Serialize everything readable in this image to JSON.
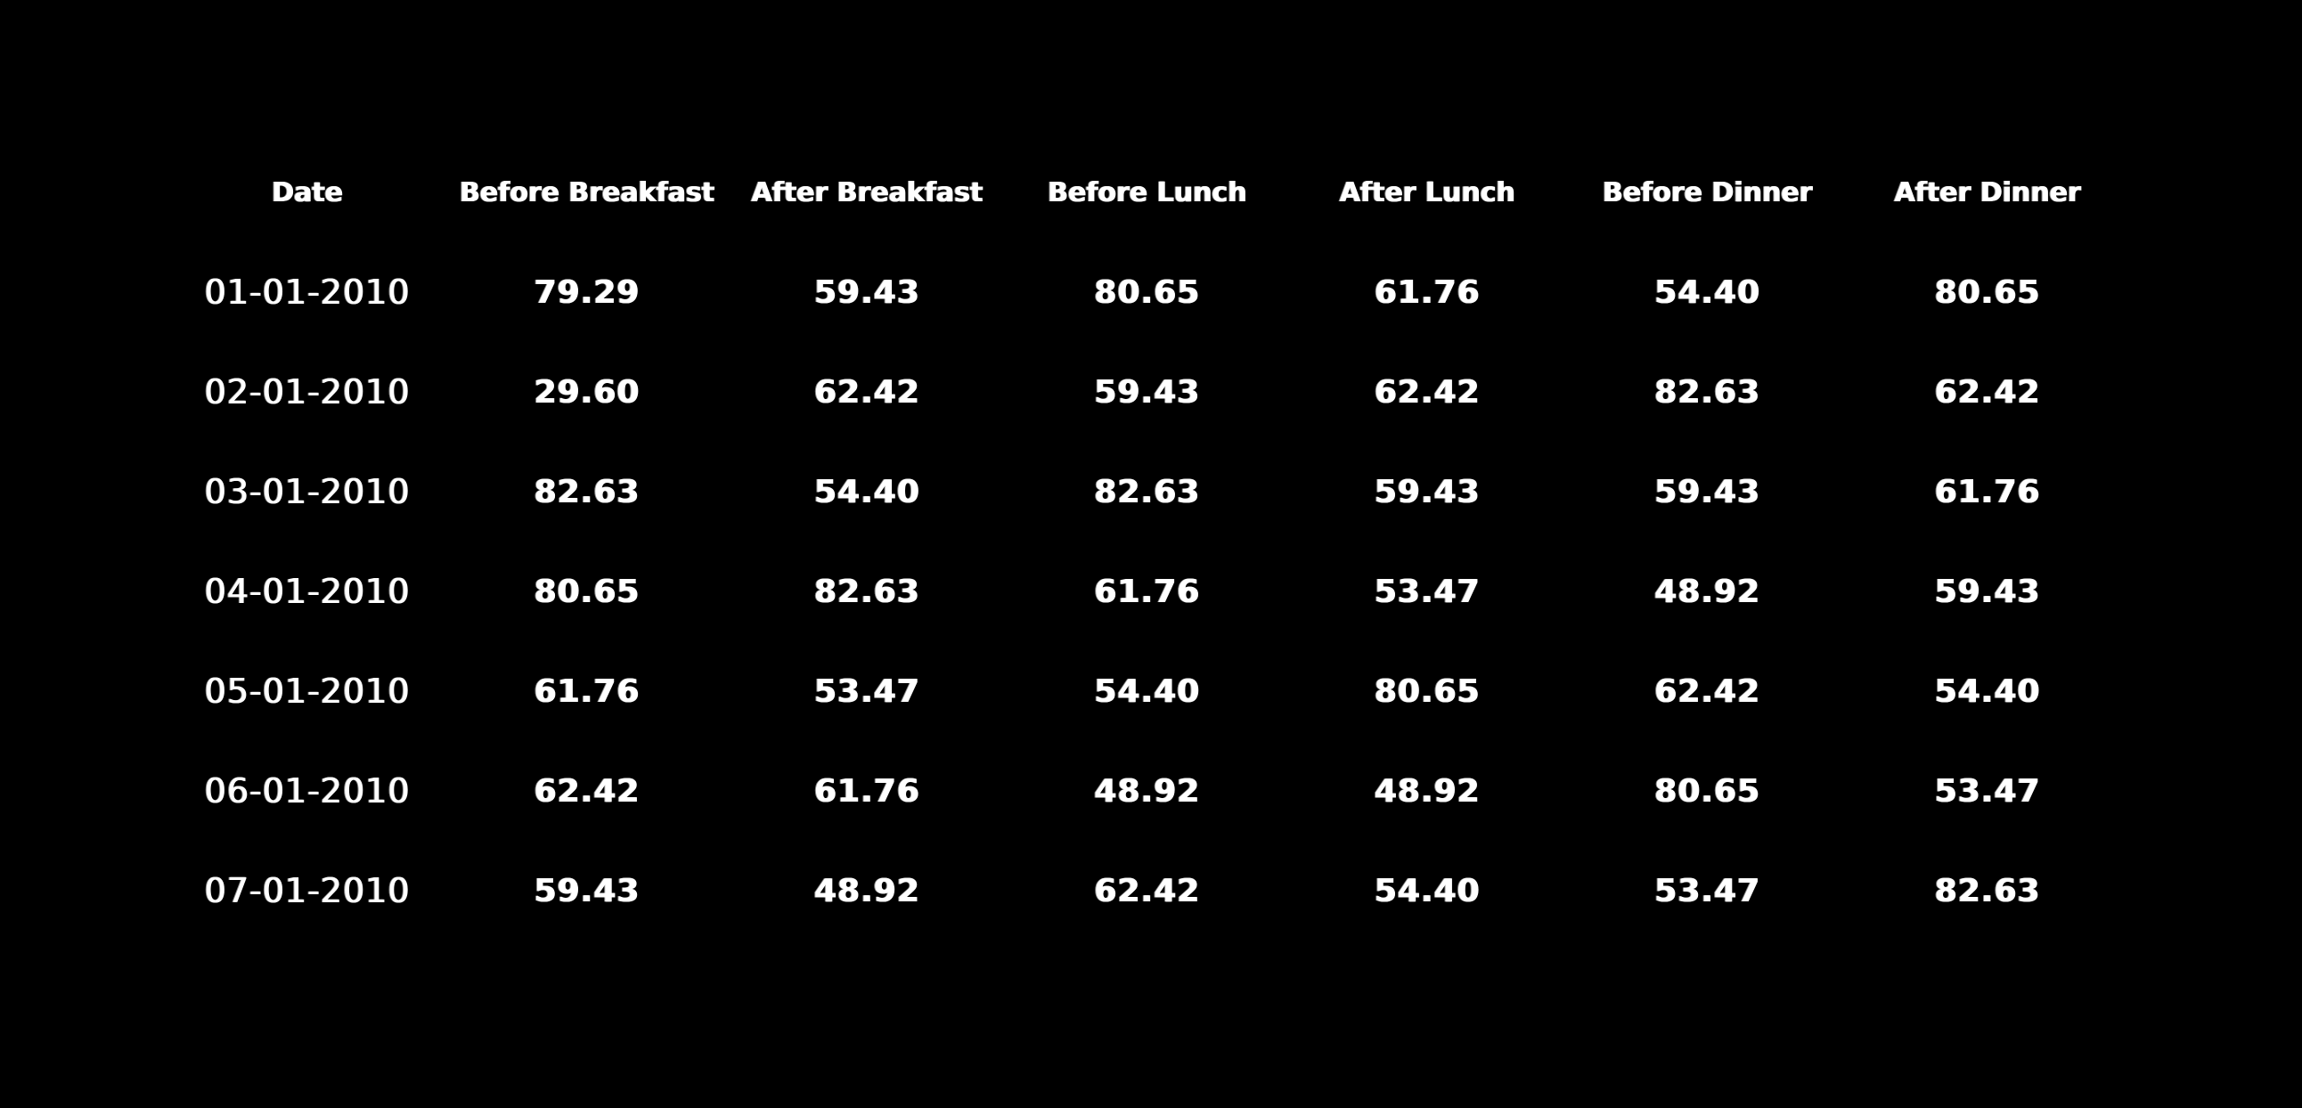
{
  "table": {
    "headers": [
      "Date",
      "Before Breakfast",
      "After Breakfast",
      "Before Lunch",
      "After Lunch",
      "Before Dinner",
      "After Dinner"
    ],
    "rows": [
      [
        "01-01-2010",
        "79.29",
        "59.43",
        "80.65",
        "61.76",
        "54.40",
        "80.65"
      ],
      [
        "02-01-2010",
        "29.60",
        "62.42",
        "59.43",
        "62.42",
        "82.63",
        "62.42"
      ],
      [
        "03-01-2010",
        "82.63",
        "54.40",
        "82.63",
        "59.43",
        "59.43",
        "61.76"
      ],
      [
        "04-01-2010",
        "80.65",
        "82.63",
        "61.76",
        "53.47",
        "48.92",
        "59.43"
      ],
      [
        "05-01-2010",
        "61.76",
        "53.47",
        "54.40",
        "80.65",
        "62.42",
        "54.40"
      ],
      [
        "06-01-2010",
        "62.42",
        "61.76",
        "48.92",
        "48.92",
        "80.65",
        "53.47"
      ],
      [
        "07-01-2010",
        "59.43",
        "48.92",
        "62.42",
        "54.40",
        "53.47",
        "82.63"
      ]
    ]
  },
  "colors": {
    "background": "#000000",
    "text": "#ffffff"
  }
}
